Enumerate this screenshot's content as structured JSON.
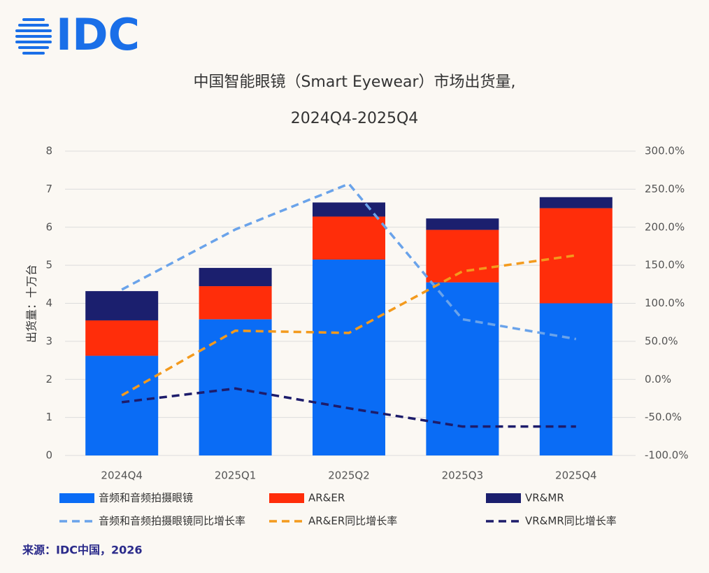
{
  "logo": "IDC",
  "chart_data": {
    "type": "bar",
    "stacked": true,
    "title": "中国智能眼镜（Smart Eyewear）市场出货量,",
    "subtitle": "2024Q4-2025Q4",
    "y_label": "出货量：十万台",
    "source": "来源：IDC中国，2026",
    "categories": [
      "2024Q4",
      "2025Q1",
      "2025Q2",
      "2025Q3",
      "2025Q4"
    ],
    "series": [
      {
        "name": "音频和音频拍摄眼镜",
        "type": "bar",
        "color": "#0a6cf5",
        "values": [
          2.62,
          3.58,
          5.15,
          4.55,
          4.0
        ]
      },
      {
        "name": "AR&ER",
        "type": "bar",
        "color": "#ff2d0a",
        "values": [
          0.93,
          0.87,
          1.13,
          1.38,
          2.5
        ]
      },
      {
        "name": "VR&MR",
        "type": "bar",
        "color": "#1b1f6e",
        "values": [
          0.77,
          0.48,
          0.37,
          0.3,
          0.29
        ]
      },
      {
        "name": "音频和音频拍摄眼镜同比增长率",
        "type": "line",
        "axis": "y2",
        "dashed": true,
        "color": "#6aa3ea",
        "values": [
          118,
          197,
          257,
          79,
          53
        ]
      },
      {
        "name": "AR&ER同比增长率",
        "type": "line",
        "axis": "y2",
        "dashed": true,
        "color": "#f39a1d",
        "values": [
          -21,
          64,
          61,
          142,
          163
        ]
      },
      {
        "name": "VR&MR同比增长率",
        "type": "line",
        "axis": "y2",
        "dashed": true,
        "color": "#1d1c6b",
        "values": [
          -30,
          -12,
          -38,
          -62,
          -62
        ]
      }
    ],
    "ylim": [
      0,
      8
    ],
    "yticks": [
      0,
      1,
      2,
      3,
      4,
      5,
      6,
      7,
      8
    ],
    "y2lim": [
      -100,
      300
    ],
    "y2ticks": [
      {
        "value": -100,
        "label": "-100.0%"
      },
      {
        "value": -50,
        "label": "-50.0%"
      },
      {
        "value": 0,
        "label": "0.0%"
      },
      {
        "value": 50,
        "label": "50.0%"
      },
      {
        "value": 100,
        "label": "100.0%"
      },
      {
        "value": 150,
        "label": "150.0%"
      },
      {
        "value": 200,
        "label": "200.0%"
      },
      {
        "value": 250,
        "label": "250.0%"
      },
      {
        "value": 300,
        "label": "300.0%"
      }
    ],
    "grid": true
  }
}
